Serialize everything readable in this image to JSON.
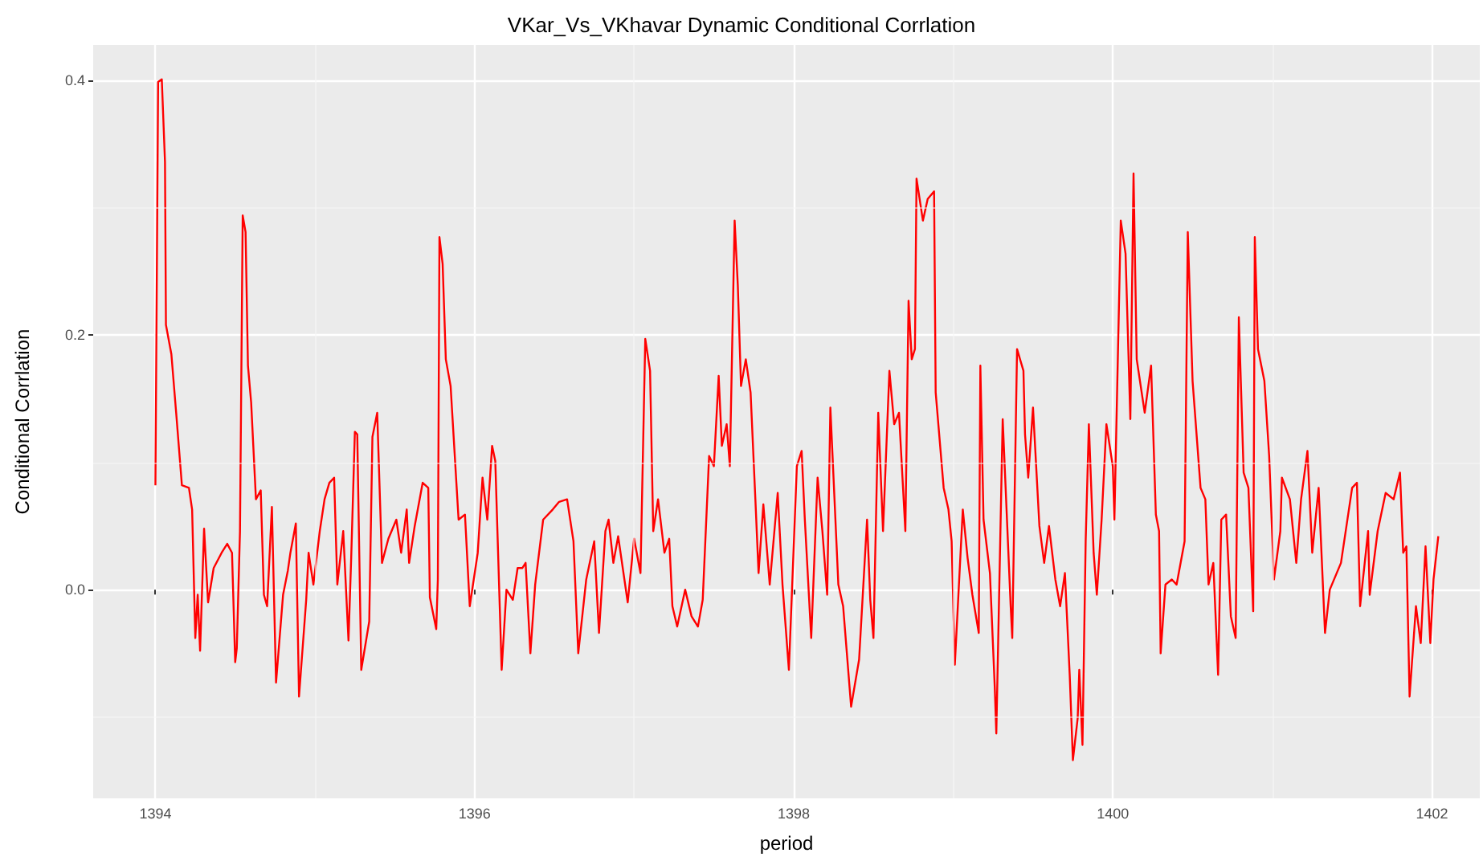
{
  "chart_data": {
    "type": "line",
    "title": "VKar_Vs_VKhavar Dynamic Conditional Corrlation",
    "xlabel": "period",
    "ylabel": "Conditional Corrlation",
    "xlim": [
      1393.61,
      1402.3
    ],
    "xticks": [
      1394,
      1396,
      1398,
      1400,
      1402
    ],
    "ylim": [
      -0.164,
      0.428
    ],
    "yticks": [
      {
        "value": 0,
        "label": "0.0"
      },
      {
        "value": 0.2,
        "label": "0.2"
      },
      {
        "value": 0.4,
        "label": "0.4"
      }
    ],
    "grid": true,
    "line_style": "solid",
    "marker": "none",
    "series": [
      {
        "color": "#ff0000",
        "x": [
          1394.0,
          1394.017,
          1394.04,
          1394.06,
          1394.066,
          1394.1,
          1394.13,
          1394.166,
          1394.21,
          1394.23,
          1394.25,
          1394.265,
          1394.28,
          1394.305,
          1394.33,
          1394.365,
          1394.415,
          1394.45,
          1394.48,
          1394.5,
          1394.51,
          1394.53,
          1394.547,
          1394.565,
          1394.58,
          1394.6,
          1394.63,
          1394.66,
          1394.68,
          1394.7,
          1394.73,
          1394.756,
          1394.8,
          1394.83,
          1394.846,
          1394.88,
          1394.9,
          1394.945,
          1394.96,
          1394.99,
          1395.03,
          1395.06,
          1395.09,
          1395.12,
          1395.14,
          1395.177,
          1395.21,
          1395.227,
          1395.25,
          1395.265,
          1395.29,
          1395.34,
          1395.36,
          1395.39,
          1395.42,
          1395.46,
          1395.51,
          1395.54,
          1395.575,
          1395.59,
          1395.625,
          1395.675,
          1395.71,
          1395.72,
          1395.76,
          1395.77,
          1395.78,
          1395.8,
          1395.82,
          1395.85,
          1395.9,
          1395.94,
          1395.97,
          1396.02,
          1396.05,
          1396.08,
          1396.11,
          1396.13,
          1396.17,
          1396.2,
          1396.24,
          1396.27,
          1396.3,
          1396.32,
          1396.35,
          1396.38,
          1396.43,
          1396.49,
          1396.53,
          1396.58,
          1396.62,
          1396.65,
          1396.7,
          1396.75,
          1396.78,
          1396.82,
          1396.84,
          1396.87,
          1396.9,
          1396.96,
          1397.0,
          1397.04,
          1397.07,
          1397.1,
          1397.12,
          1397.15,
          1397.19,
          1397.22,
          1397.24,
          1397.27,
          1397.32,
          1397.36,
          1397.4,
          1397.43,
          1397.47,
          1397.5,
          1397.53,
          1397.55,
          1397.58,
          1397.6,
          1397.63,
          1397.65,
          1397.67,
          1397.7,
          1397.73,
          1397.76,
          1397.78,
          1397.81,
          1397.85,
          1397.9,
          1397.93,
          1397.97,
          1398.02,
          1398.05,
          1398.07,
          1398.11,
          1398.15,
          1398.18,
          1398.21,
          1398.23,
          1398.28,
          1398.31,
          1398.36,
          1398.41,
          1398.46,
          1398.48,
          1398.5,
          1398.53,
          1398.56,
          1398.6,
          1398.63,
          1398.66,
          1398.7,
          1398.72,
          1398.74,
          1398.76,
          1398.77,
          1398.81,
          1398.84,
          1398.88,
          1398.89,
          1398.94,
          1398.97,
          1398.99,
          1399.01,
          1399.06,
          1399.09,
          1399.12,
          1399.16,
          1399.17,
          1399.19,
          1399.23,
          1399.26,
          1399.27,
          1399.31,
          1399.36,
          1399.37,
          1399.4,
          1399.44,
          1399.45,
          1399.47,
          1399.5,
          1399.54,
          1399.57,
          1399.6,
          1399.64,
          1399.67,
          1399.7,
          1399.73,
          1399.75,
          1399.78,
          1399.79,
          1399.81,
          1399.83,
          1399.85,
          1399.88,
          1399.9,
          1399.93,
          1399.96,
          1400.0,
          1400.01,
          1400.05,
          1400.08,
          1400.11,
          1400.13,
          1400.15,
          1400.2,
          1400.24,
          1400.27,
          1400.29,
          1400.3,
          1400.33,
          1400.37,
          1400.4,
          1400.45,
          1400.47,
          1400.5,
          1400.55,
          1400.58,
          1400.6,
          1400.63,
          1400.66,
          1400.68,
          1400.71,
          1400.74,
          1400.77,
          1400.79,
          1400.82,
          1400.85,
          1400.88,
          1400.89,
          1400.91,
          1400.95,
          1400.98,
          1401.01,
          1401.05,
          1401.06,
          1401.11,
          1401.15,
          1401.18,
          1401.22,
          1401.25,
          1401.29,
          1401.33,
          1401.36,
          1401.43,
          1401.5,
          1401.53,
          1401.55,
          1401.6,
          1401.61,
          1401.66,
          1401.71,
          1401.76,
          1401.8,
          1401.82,
          1401.84,
          1401.86,
          1401.9,
          1401.93,
          1401.96,
          1401.99,
          1402.01,
          1402.04
        ],
        "values": [
          0.082,
          0.399,
          0.401,
          0.336,
          0.208,
          0.185,
          0.139,
          0.082,
          0.08,
          0.063,
          -0.038,
          -0.004,
          -0.048,
          0.048,
          -0.01,
          0.017,
          0.029,
          0.036,
          0.029,
          -0.057,
          -0.046,
          0.046,
          0.294,
          0.281,
          0.176,
          0.147,
          0.071,
          0.078,
          -0.004,
          -0.013,
          0.065,
          -0.073,
          -0.004,
          0.015,
          0.029,
          0.052,
          -0.084,
          -0.008,
          0.029,
          0.004,
          0.046,
          0.071,
          0.084,
          0.088,
          0.004,
          0.046,
          -0.04,
          0.025,
          0.124,
          0.122,
          -0.063,
          -0.025,
          0.12,
          0.139,
          0.021,
          0.04,
          0.055,
          0.029,
          0.063,
          0.021,
          0.05,
          0.084,
          0.08,
          -0.006,
          -0.031,
          0.008,
          0.277,
          0.256,
          0.181,
          0.16,
          0.055,
          0.059,
          -0.013,
          0.029,
          0.088,
          0.055,
          0.113,
          0.101,
          -0.063,
          0.0,
          -0.008,
          0.017,
          0.017,
          0.021,
          -0.05,
          0.004,
          0.055,
          0.063,
          0.069,
          0.071,
          0.038,
          -0.05,
          0.008,
          0.038,
          -0.034,
          0.046,
          0.055,
          0.021,
          0.042,
          -0.01,
          0.04,
          0.013,
          0.197,
          0.172,
          0.046,
          0.071,
          0.029,
          0.04,
          -0.013,
          -0.029,
          0.0,
          -0.021,
          -0.029,
          -0.008,
          0.105,
          0.097,
          0.168,
          0.113,
          0.13,
          0.097,
          0.29,
          0.239,
          0.16,
          0.181,
          0.155,
          0.071,
          0.013,
          0.067,
          0.004,
          0.076,
          0.004,
          -0.063,
          0.097,
          0.109,
          0.055,
          -0.038,
          0.088,
          0.046,
          -0.004,
          0.143,
          0.004,
          -0.013,
          -0.092,
          -0.055,
          0.055,
          -0.008,
          -0.038,
          0.139,
          0.046,
          0.172,
          0.13,
          0.139,
          0.046,
          0.227,
          0.181,
          0.189,
          0.323,
          0.29,
          0.307,
          0.313,
          0.155,
          0.08,
          0.063,
          0.038,
          -0.059,
          0.063,
          0.025,
          -0.004,
          -0.034,
          0.176,
          0.055,
          0.013,
          -0.076,
          -0.113,
          0.134,
          -0.013,
          -0.038,
          0.189,
          0.172,
          0.122,
          0.088,
          0.143,
          0.05,
          0.021,
          0.05,
          0.008,
          -0.013,
          0.013,
          -0.067,
          -0.134,
          -0.101,
          -0.063,
          -0.122,
          0.038,
          0.13,
          0.029,
          -0.004,
          0.055,
          0.13,
          0.097,
          0.055,
          0.29,
          0.264,
          0.134,
          0.327,
          0.181,
          0.139,
          0.176,
          0.059,
          0.046,
          -0.05,
          0.004,
          0.008,
          0.004,
          0.038,
          0.281,
          0.164,
          0.08,
          0.071,
          0.004,
          0.021,
          -0.067,
          0.055,
          0.059,
          -0.021,
          -0.038,
          0.214,
          0.092,
          0.08,
          -0.017,
          0.277,
          0.189,
          0.164,
          0.105,
          0.008,
          0.046,
          0.088,
          0.071,
          0.021,
          0.071,
          0.109,
          0.029,
          0.08,
          -0.034,
          0.0,
          0.021,
          0.08,
          0.084,
          -0.013,
          0.046,
          -0.004,
          0.046,
          0.076,
          0.071,
          0.092,
          0.029,
          0.034,
          -0.084,
          -0.013,
          -0.042,
          0.034,
          -0.042,
          0.008,
          0.042
        ]
      }
    ]
  }
}
